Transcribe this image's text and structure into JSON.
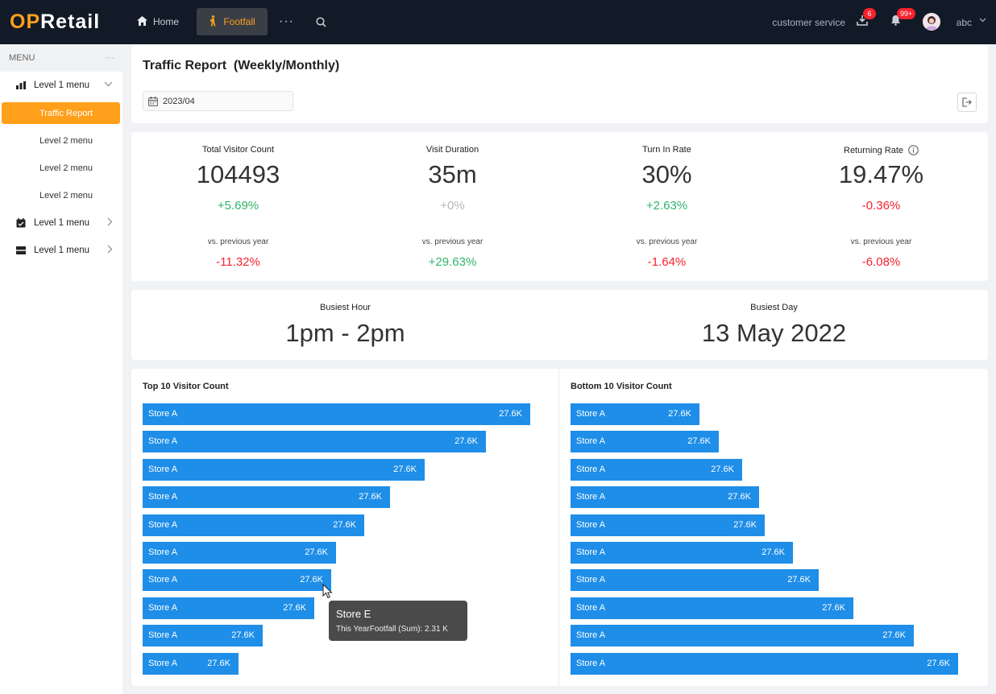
{
  "brand": {
    "name_part1": "OP",
    "name_part2": "Retail"
  },
  "topbar": {
    "home_label": "Home",
    "footfall_label": "Footfall",
    "more_label": "···",
    "customer_service": "customer service",
    "download_badge": "6",
    "notifications_badge": "99+",
    "username": "abc",
    "accent_color": "#ff9f1a"
  },
  "sidebar": {
    "header": "MENU",
    "header_more": "···",
    "items": [
      {
        "label": "Level 1 menu",
        "icon": "bar-chart-icon",
        "expanded": true
      },
      {
        "label": "Traffic Report",
        "active": true
      },
      {
        "label": "Level 2 menu"
      },
      {
        "label": "Level 2 menu"
      },
      {
        "label": "Level 2 menu"
      },
      {
        "label": "Level 1 menu",
        "icon": "calendar-check-icon",
        "expanded": false
      },
      {
        "label": "Level 1 menu",
        "icon": "server-icon",
        "expanded": false
      }
    ]
  },
  "report": {
    "title": "Traffic Report  (Weekly/Monthly)",
    "date": "2023/04"
  },
  "kpis": [
    {
      "label": "Total Visitor Count",
      "value": "104493",
      "delta": "+5.69%",
      "delta_kind": "pos",
      "vs_label": "vs. previous year",
      "vs_delta": "-11.32%",
      "vs_kind": "neg"
    },
    {
      "label": "Visit Duration",
      "value": "35m",
      "delta": "+0%",
      "delta_kind": "neu",
      "vs_label": "vs. previous year",
      "vs_delta": "+29.63%",
      "vs_kind": "pos"
    },
    {
      "label": "Turn In Rate",
      "value": "30%",
      "delta": "+2.63%",
      "delta_kind": "pos",
      "vs_label": "vs. previous year",
      "vs_delta": "-1.64%",
      "vs_kind": "neg"
    },
    {
      "label": "Returning Rate",
      "value": "19.47%",
      "delta": "-0.36%",
      "delta_kind": "neg",
      "vs_label": "vs. previous year",
      "vs_delta": "-6.08%",
      "vs_kind": "neg"
    }
  ],
  "busiest": {
    "hour_label": "Busiest Hour",
    "hour_value": "1pm - 2pm",
    "day_label": "Busiest Day",
    "day_value": "13 May 2022"
  },
  "chart_data": [
    {
      "type": "bar",
      "orientation": "horizontal",
      "title": "Top 10 Visitor Count",
      "categories": [
        "Store A",
        "Store A",
        "Store A",
        "Store A",
        "Store A",
        "Store A",
        "Store A",
        "Store A",
        "Store A",
        "Store A"
      ],
      "value_labels": [
        "27.6K",
        "27.6K",
        "27.6K",
        "27.6K",
        "27.6K",
        "27.6K",
        "27.6K",
        "27.6K",
        "27.6K",
        "27.6K"
      ],
      "relative_values": [
        1.0,
        0.885,
        0.728,
        0.638,
        0.572,
        0.499,
        0.487,
        0.443,
        0.309,
        0.247
      ],
      "color": "#1e8ee8"
    },
    {
      "type": "bar",
      "orientation": "horizontal",
      "title": "Bottom 10 Visitor Count",
      "categories": [
        "Store A",
        "Store A",
        "Store A",
        "Store A",
        "Store A",
        "Store A",
        "Store A",
        "Store A",
        "Store A",
        "Store A"
      ],
      "value_labels": [
        "27.6K",
        "27.6K",
        "27.6K",
        "27.6K",
        "27.6K",
        "27.6K",
        "27.6K",
        "27.6K",
        "27.6K",
        "27.6K"
      ],
      "relative_values": [
        0.332,
        0.382,
        0.443,
        0.486,
        0.5,
        0.573,
        0.64,
        0.729,
        0.886,
        1.0
      ],
      "color": "#1e8ee8"
    }
  ],
  "tooltip": {
    "title": "Store E",
    "text": "This YearFootfall (Sum): 2.31 K"
  }
}
